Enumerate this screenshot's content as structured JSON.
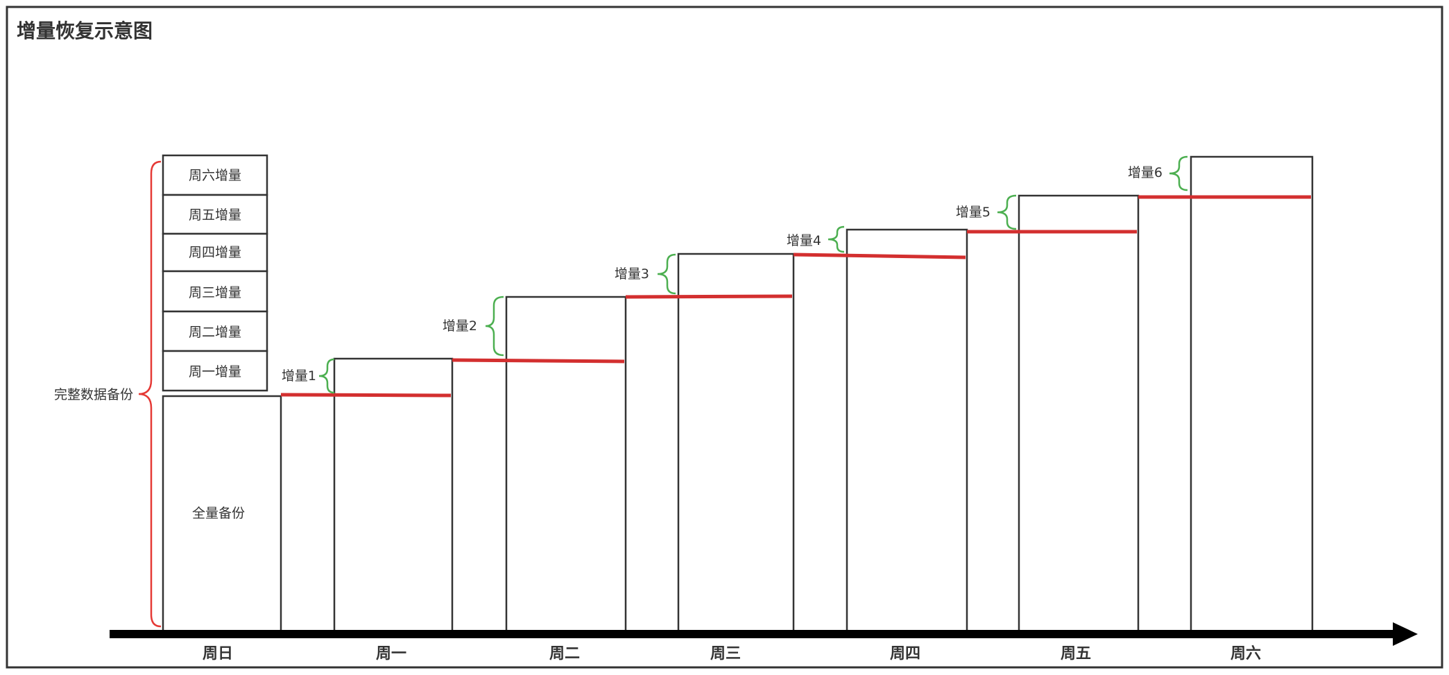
{
  "title": "增量恢复示意图",
  "full_backup_label": "全量备份",
  "complete_backup_label": "完整数据备份",
  "stack_labels": [
    "周一增量",
    "周二增量",
    "周三增量",
    "周四增量",
    "周五增量",
    "周六增量"
  ],
  "days": [
    "周日",
    "周一",
    "周二",
    "周三",
    "周四",
    "周五",
    "周六"
  ],
  "increments": [
    "增量1",
    "增量2",
    "增量3",
    "增量4",
    "增量5",
    "增量6"
  ],
  "colors": {
    "border": "#333333",
    "text": "#333333",
    "red_line": "#d32f2f",
    "red_brace": "#e53935",
    "green_brace": "#4caf50",
    "axis": "#000000"
  }
}
